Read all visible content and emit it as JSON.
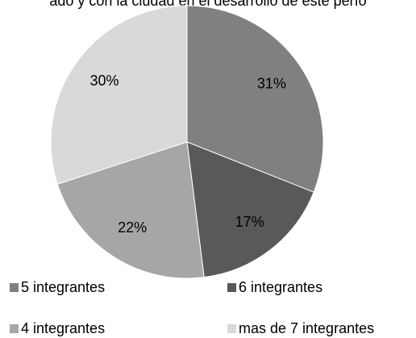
{
  "chart_data": {
    "type": "pie",
    "title": "ado y con la ciudad en el desarrollo de este perío",
    "categories": [
      "5 integrantes",
      "6 integrantes",
      "4 integrantes",
      "mas de 7 integrantes"
    ],
    "values": [
      31,
      17,
      22,
      30
    ],
    "value_labels": [
      "31%",
      "17%",
      "22%",
      "30%"
    ],
    "colors": [
      "#808080",
      "#595959",
      "#a6a6a6",
      "#d9d9d9"
    ],
    "legend": "bottom"
  }
}
